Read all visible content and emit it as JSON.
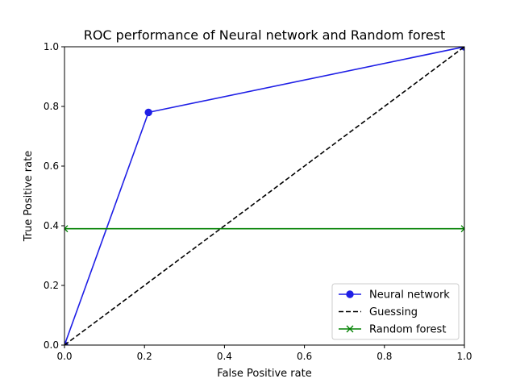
{
  "chart_data": {
    "type": "line",
    "title": "ROC performance of Neural network and Random forest",
    "xlabel": "False Positive rate",
    "ylabel": "True Positive rate",
    "xlim": [
      0,
      1
    ],
    "ylim": [
      0,
      1
    ],
    "xticks": [
      "0.0",
      "0.2",
      "0.4",
      "0.6",
      "0.8",
      "1.0"
    ],
    "yticks": [
      "0.0",
      "0.2",
      "0.4",
      "0.6",
      "0.8",
      "1.0"
    ],
    "grid": false,
    "legend_position": "lower-right",
    "series": [
      {
        "name": "Neural network",
        "color": "#1f1fe6",
        "line_style": "solid",
        "marker": "circle",
        "x": [
          0.0,
          0.21,
          1.0
        ],
        "y": [
          0.0,
          0.78,
          1.0
        ]
      },
      {
        "name": "Guessing",
        "color": "#000000",
        "line_style": "dashed",
        "marker": "none",
        "x": [
          0.0,
          1.0
        ],
        "y": [
          0.0,
          1.0
        ]
      },
      {
        "name": "Random forest",
        "color": "#008000",
        "line_style": "solid",
        "marker": "x",
        "x": [
          0.0,
          1.0
        ],
        "y": [
          0.39,
          0.39
        ]
      }
    ]
  }
}
